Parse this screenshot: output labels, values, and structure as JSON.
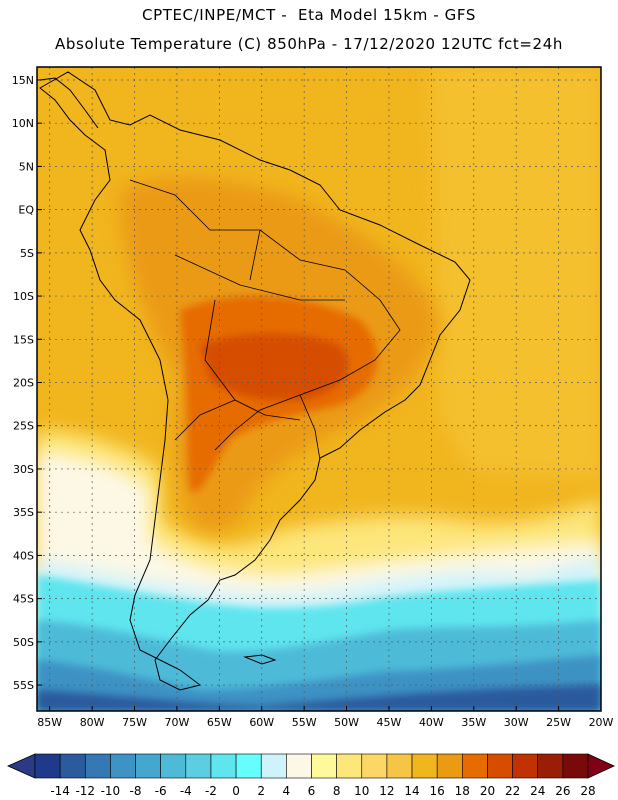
{
  "header": {
    "line1": "CPTEC/INPE/MCT -  Eta Model 15km - GFS",
    "line2": "Absolute Temperature (C) 850hPa - 17/12/2020 12UTC fct=24h"
  },
  "map": {
    "lat_labels": [
      "15N",
      "10N",
      "5N",
      "EQ",
      "5S",
      "10S",
      "15S",
      "20S",
      "25S",
      "30S",
      "35S",
      "40S",
      "45S",
      "50S",
      "55S"
    ],
    "lat_values": [
      15,
      10,
      5,
      0,
      -5,
      -10,
      -15,
      -20,
      -25,
      -30,
      -35,
      -40,
      -45,
      -50,
      -55
    ],
    "lon_labels": [
      "85W",
      "80W",
      "75W",
      "70W",
      "65W",
      "60W",
      "55W",
      "50W",
      "45W",
      "40W",
      "35W",
      "30W",
      "25W",
      "20W"
    ],
    "lon_values": [
      -85,
      -80,
      -75,
      -70,
      -65,
      -60,
      -55,
      -50,
      -45,
      -40,
      -35,
      -30,
      -25,
      -20
    ],
    "lat_range": [
      -58,
      16.5
    ],
    "lon_range": [
      -86.5,
      -20
    ],
    "gridlines": "dotted"
  },
  "colorbar": {
    "labels": [
      "-14",
      "-12",
      "-10",
      "-8",
      "-6",
      "-4",
      "-2",
      "0",
      "2",
      "4",
      "6",
      "8",
      "10",
      "12",
      "14",
      "16",
      "18",
      "20",
      "22",
      "24",
      "26",
      "28"
    ],
    "colors": [
      "#1f3a8a",
      "#2b5a9e",
      "#3478b4",
      "#3e92c4",
      "#45a6cf",
      "#4dbbd8",
      "#5ccee2",
      "#5fe5ee",
      "#66ffff",
      "#cdf3fb",
      "#fdf8e6",
      "#fef99a",
      "#fde67a",
      "#fcd766",
      "#f6c545",
      "#f1b51e",
      "#eb9a14",
      "#e66c00",
      "#d64d00",
      "#c03202",
      "#9a1e06",
      "#7a0a0a"
    ],
    "underflow_color": "#2b3a86",
    "overflow_color": "#800015"
  }
}
